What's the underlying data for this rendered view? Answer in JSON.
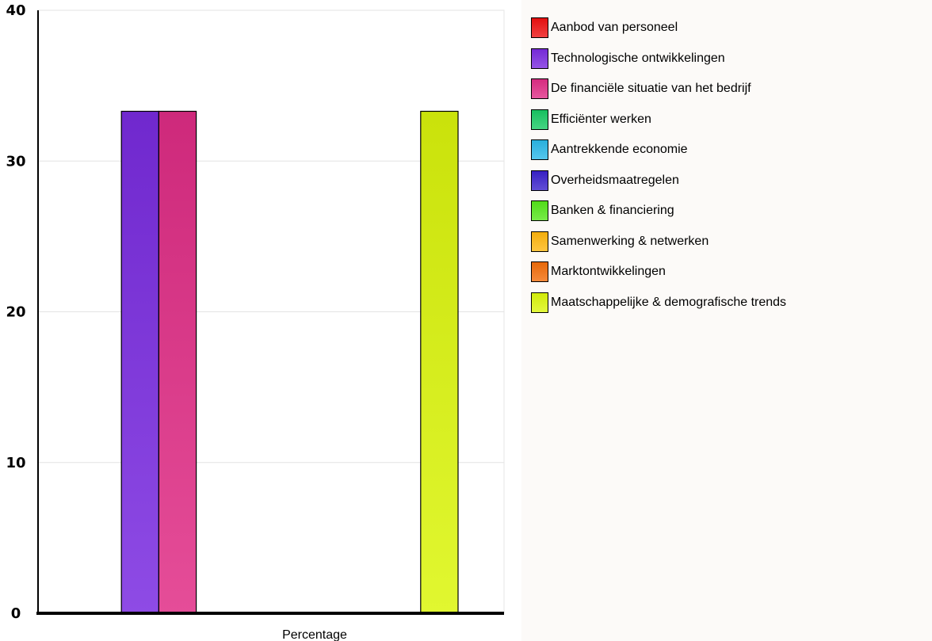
{
  "chart_data": {
    "type": "bar",
    "categories": [
      "Percentage"
    ],
    "series": [
      {
        "name": "Aanbod van personeel",
        "values": [
          0
        ],
        "color": "#ee1111"
      },
      {
        "name": "Technologische ontwikkelingen",
        "values": [
          33.3
        ],
        "color": "#7a2be0"
      },
      {
        "name": "De financiële situatie van het bedrijf",
        "values": [
          33.3
        ],
        "color": "#e02d86"
      },
      {
        "name": "Efficiënter werken",
        "values": [
          0
        ],
        "color": "#18c964"
      },
      {
        "name": "Aantrekkende  economie",
        "values": [
          0
        ],
        "color": "#2bb8e8"
      },
      {
        "name": "Overheidsmaatregelen",
        "values": [
          0
        ],
        "color": "#3a22cc"
      },
      {
        "name": "Banken & financiering",
        "values": [
          0
        ],
        "color": "#55e61a"
      },
      {
        "name": "Samenwerking & netwerken",
        "values": [
          0
        ],
        "color": "#ffb60f"
      },
      {
        "name": "Marktontwikkelingen",
        "values": [
          0
        ],
        "color": "#f26d0a"
      },
      {
        "name": "Maatschappelijke & demografische trends",
        "values": [
          33.3
        ],
        "color": "#dcf60c"
      }
    ],
    "yticks": [
      "0",
      "10",
      "20",
      "30",
      "40"
    ],
    "ylim": [
      0,
      40
    ],
    "xlabel": "",
    "ylabel": "",
    "grid": true,
    "legend_position": "right"
  }
}
